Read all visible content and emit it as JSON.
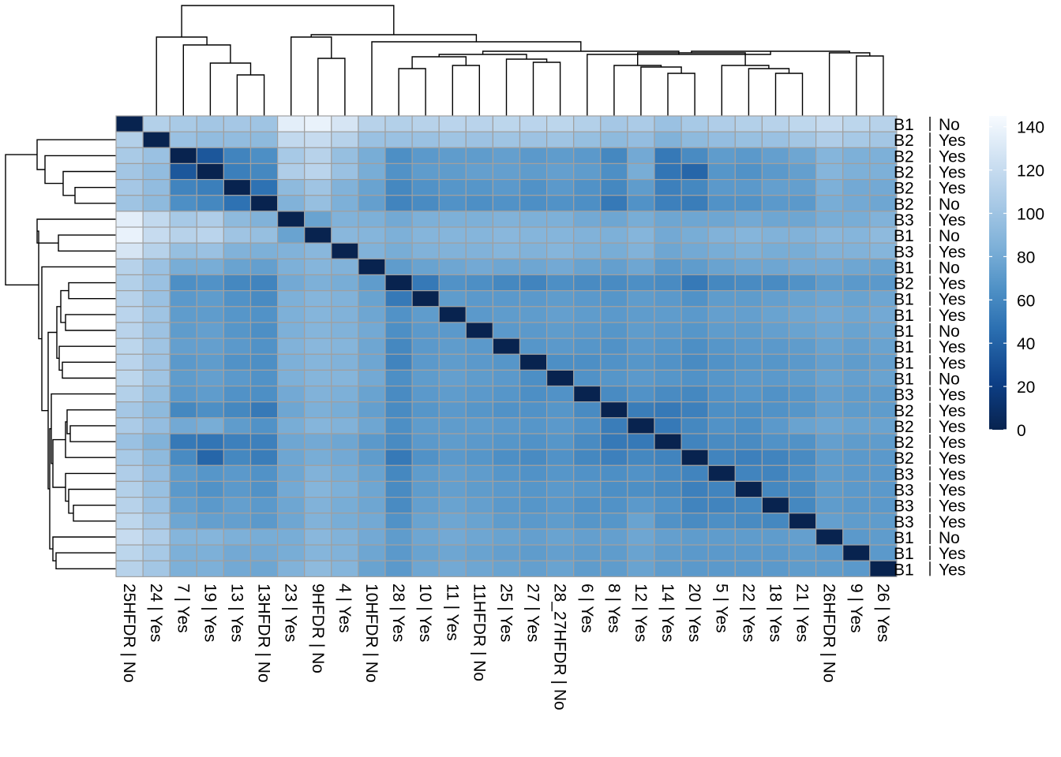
{
  "chart_data": {
    "type": "heatmap",
    "title": "",
    "columns": [
      "25HFDR | No",
      "24 | Yes",
      "7 | Yes",
      "19 | Yes",
      "13 | Yes",
      "13HFDR | No",
      "23 | Yes",
      "9HFDR | No",
      "4 | Yes",
      "10HFDR | No",
      "28 | Yes",
      "10 | Yes",
      "11 | Yes",
      "11HFDR | No",
      "25 | Yes",
      "27 | Yes",
      "28_27HFDR | No",
      "6 | Yes",
      "8 | Yes",
      "12 | Yes",
      "14 | Yes",
      "20 | Yes",
      "5 | Yes",
      "22 | Yes",
      "18 | Yes",
      "21 | Yes",
      "26HFDR | No",
      "9 | Yes",
      "26 | Yes"
    ],
    "rows": [
      "B1 | No",
      "B2 | Yes",
      "B2 | Yes",
      "B2 | Yes",
      "B2 | Yes",
      "B2 | No",
      "B3 | Yes",
      "B1 | No",
      "B3 | Yes",
      "B1 | No",
      "B2 | Yes",
      "B1 | Yes",
      "B1 | Yes",
      "B1 | No",
      "B1 | Yes",
      "B1 | Yes",
      "B1 | No",
      "B3 | Yes",
      "B2 | Yes",
      "B2 | Yes",
      "B2 | Yes",
      "B2 | Yes",
      "B3 | Yes",
      "B3 | Yes",
      "B3 | Yes",
      "B3 | Yes",
      "B1 | No",
      "B1 | Yes",
      "B1 | Yes"
    ],
    "values": [
      [
        0,
        110,
        105,
        102,
        103,
        100,
        135,
        138,
        128,
        112,
        110,
        112,
        114,
        113,
        115,
        114,
        115,
        110,
        103,
        106,
        98,
        104,
        108,
        110,
        112,
        116,
        120,
        115,
        112
      ],
      [
        110,
        0,
        98,
        94,
        94,
        92,
        118,
        120,
        112,
        98,
        98,
        98,
        100,
        99,
        100,
        99,
        100,
        96,
        92,
        95,
        86,
        92,
        95,
        97,
        98,
        102,
        108,
        104,
        102
      ],
      [
        105,
        98,
        0,
        34,
        58,
        64,
        104,
        112,
        96,
        82,
        64,
        70,
        72,
        72,
        74,
        70,
        72,
        70,
        60,
        80,
        52,
        62,
        72,
        70,
        74,
        78,
        88,
        84,
        84
      ],
      [
        102,
        94,
        34,
        0,
        55,
        60,
        108,
        114,
        98,
        82,
        66,
        72,
        72,
        74,
        74,
        72,
        74,
        72,
        64,
        82,
        50,
        42,
        68,
        66,
        70,
        74,
        88,
        84,
        84
      ],
      [
        103,
        94,
        58,
        55,
        0,
        48,
        92,
        100,
        86,
        76,
        60,
        66,
        68,
        68,
        70,
        66,
        70,
        66,
        60,
        72,
        56,
        60,
        70,
        70,
        74,
        74,
        84,
        80,
        80
      ],
      [
        100,
        92,
        64,
        60,
        48,
        0,
        86,
        96,
        84,
        74,
        58,
        62,
        66,
        64,
        66,
        64,
        66,
        64,
        52,
        66,
        56,
        54,
        66,
        66,
        70,
        70,
        82,
        80,
        78
      ],
      [
        135,
        118,
        104,
        108,
        92,
        86,
        0,
        76,
        86,
        84,
        80,
        84,
        84,
        84,
        86,
        84,
        84,
        80,
        78,
        82,
        78,
        78,
        78,
        80,
        78,
        78,
        82,
        82,
        86
      ],
      [
        138,
        120,
        112,
        114,
        100,
        96,
        76,
        0,
        90,
        88,
        84,
        88,
        88,
        88,
        90,
        88,
        88,
        86,
        84,
        88,
        80,
        82,
        86,
        88,
        86,
        86,
        90,
        88,
        92
      ],
      [
        128,
        112,
        96,
        98,
        86,
        84,
        86,
        90,
        0,
        86,
        82,
        86,
        86,
        86,
        88,
        86,
        88,
        84,
        82,
        86,
        78,
        80,
        82,
        84,
        82,
        82,
        86,
        86,
        88
      ],
      [
        112,
        98,
        82,
        82,
        76,
        74,
        84,
        88,
        86,
        0,
        72,
        76,
        78,
        80,
        78,
        78,
        80,
        76,
        74,
        78,
        70,
        72,
        76,
        78,
        78,
        80,
        80,
        78,
        76
      ],
      [
        110,
        98,
        64,
        66,
        60,
        58,
        80,
        84,
        82,
        72,
        0,
        52,
        66,
        64,
        60,
        58,
        64,
        62,
        62,
        64,
        62,
        52,
        60,
        62,
        62,
        66,
        72,
        70,
        70
      ],
      [
        112,
        98,
        70,
        72,
        66,
        62,
        84,
        88,
        86,
        76,
        52,
        0,
        72,
        70,
        70,
        70,
        72,
        70,
        68,
        72,
        70,
        66,
        72,
        72,
        74,
        76,
        78,
        76,
        78
      ],
      [
        114,
        100,
        72,
        72,
        68,
        66,
        84,
        88,
        86,
        78,
        66,
        72,
        0,
        70,
        72,
        72,
        74,
        72,
        70,
        72,
        72,
        70,
        74,
        74,
        76,
        78,
        80,
        78,
        80
      ],
      [
        113,
        99,
        72,
        74,
        68,
        64,
        84,
        88,
        86,
        80,
        64,
        70,
        70,
        0,
        70,
        70,
        72,
        70,
        68,
        72,
        70,
        68,
        72,
        72,
        74,
        76,
        78,
        76,
        78
      ],
      [
        115,
        100,
        74,
        74,
        70,
        66,
        86,
        90,
        88,
        78,
        60,
        70,
        72,
        70,
        0,
        68,
        70,
        68,
        66,
        70,
        68,
        64,
        68,
        70,
        70,
        72,
        76,
        74,
        76
      ],
      [
        114,
        99,
        70,
        72,
        66,
        64,
        84,
        88,
        86,
        78,
        58,
        70,
        72,
        70,
        68,
        0,
        64,
        64,
        66,
        68,
        66,
        62,
        66,
        68,
        68,
        70,
        74,
        72,
        74
      ],
      [
        115,
        100,
        72,
        74,
        70,
        66,
        84,
        88,
        88,
        80,
        64,
        72,
        74,
        72,
        70,
        64,
        0,
        66,
        68,
        70,
        68,
        66,
        68,
        70,
        70,
        72,
        76,
        74,
        76
      ],
      [
        110,
        96,
        70,
        72,
        66,
        64,
        80,
        86,
        84,
        76,
        62,
        70,
        72,
        70,
        68,
        64,
        66,
        0,
        62,
        66,
        62,
        60,
        66,
        68,
        66,
        68,
        74,
        72,
        72
      ],
      [
        103,
        92,
        60,
        64,
        60,
        52,
        78,
        84,
        82,
        74,
        62,
        68,
        70,
        68,
        66,
        66,
        68,
        62,
        0,
        54,
        52,
        56,
        64,
        64,
        66,
        68,
        74,
        72,
        72
      ],
      [
        106,
        95,
        80,
        82,
        72,
        66,
        82,
        88,
        86,
        78,
        64,
        72,
        72,
        72,
        70,
        68,
        70,
        66,
        54,
        0,
        52,
        60,
        66,
        64,
        70,
        76,
        78,
        76,
        76
      ],
      [
        98,
        86,
        52,
        50,
        56,
        56,
        78,
        80,
        78,
        70,
        62,
        70,
        72,
        70,
        68,
        66,
        68,
        62,
        52,
        52,
        0,
        58,
        62,
        62,
        66,
        66,
        74,
        72,
        72
      ],
      [
        104,
        92,
        62,
        42,
        60,
        54,
        78,
        82,
        80,
        72,
        52,
        66,
        70,
        68,
        64,
        62,
        66,
        60,
        56,
        60,
        58,
        0,
        58,
        56,
        58,
        62,
        72,
        70,
        70
      ],
      [
        108,
        95,
        72,
        68,
        70,
        66,
        78,
        86,
        82,
        76,
        60,
        72,
        74,
        72,
        68,
        66,
        68,
        66,
        64,
        66,
        62,
        58,
        0,
        58,
        58,
        64,
        72,
        70,
        70
      ],
      [
        110,
        97,
        70,
        66,
        70,
        66,
        80,
        88,
        84,
        78,
        62,
        72,
        74,
        72,
        70,
        68,
        70,
        68,
        64,
        64,
        62,
        56,
        58,
        0,
        60,
        62,
        72,
        70,
        70
      ],
      [
        112,
        98,
        74,
        70,
        74,
        70,
        78,
        86,
        82,
        78,
        62,
        74,
        76,
        74,
        70,
        68,
        70,
        66,
        66,
        70,
        66,
        58,
        58,
        60,
        0,
        60,
        72,
        70,
        70
      ],
      [
        116,
        102,
        78,
        74,
        74,
        70,
        78,
        86,
        82,
        80,
        66,
        76,
        78,
        76,
        72,
        70,
        72,
        68,
        68,
        76,
        66,
        62,
        64,
        62,
        60,
        0,
        74,
        72,
        72
      ],
      [
        120,
        108,
        88,
        88,
        84,
        82,
        82,
        90,
        86,
        80,
        72,
        78,
        80,
        78,
        76,
        74,
        76,
        74,
        74,
        78,
        74,
        72,
        72,
        72,
        72,
        74,
        0,
        70,
        72
      ],
      [
        115,
        104,
        84,
        84,
        80,
        80,
        82,
        88,
        86,
        78,
        70,
        76,
        78,
        76,
        74,
        72,
        74,
        72,
        72,
        76,
        72,
        70,
        70,
        70,
        70,
        72,
        70,
        0,
        70
      ],
      [
        112,
        102,
        84,
        84,
        80,
        78,
        86,
        92,
        88,
        76,
        70,
        78,
        80,
        78,
        76,
        74,
        76,
        72,
        72,
        76,
        72,
        70,
        70,
        70,
        70,
        72,
        72,
        70,
        0
      ]
    ],
    "legend": {
      "ticks": [
        0,
        20,
        40,
        60,
        80,
        100,
        120,
        140
      ],
      "range": [
        0,
        145
      ],
      "placement": "right"
    },
    "colors": {
      "low": "#08234f",
      "high": "#f7fbff",
      "cell_border": "#a0a0a0"
    },
    "dendrogram_col": {
      "order": [
        0,
        1,
        2,
        3,
        4,
        5,
        6,
        7,
        8,
        9,
        10,
        11,
        12,
        13,
        14,
        15,
        16,
        17,
        18,
        19,
        20,
        21,
        22,
        23,
        24,
        25,
        26,
        27,
        28
      ]
    },
    "dendrogram_row": {
      "order": [
        0,
        1,
        2,
        3,
        4,
        5,
        6,
        7,
        8,
        9,
        10,
        11,
        12,
        13,
        14,
        15,
        16,
        17,
        18,
        19,
        20,
        21,
        22,
        23,
        24,
        25,
        26,
        27,
        28
      ]
    }
  }
}
